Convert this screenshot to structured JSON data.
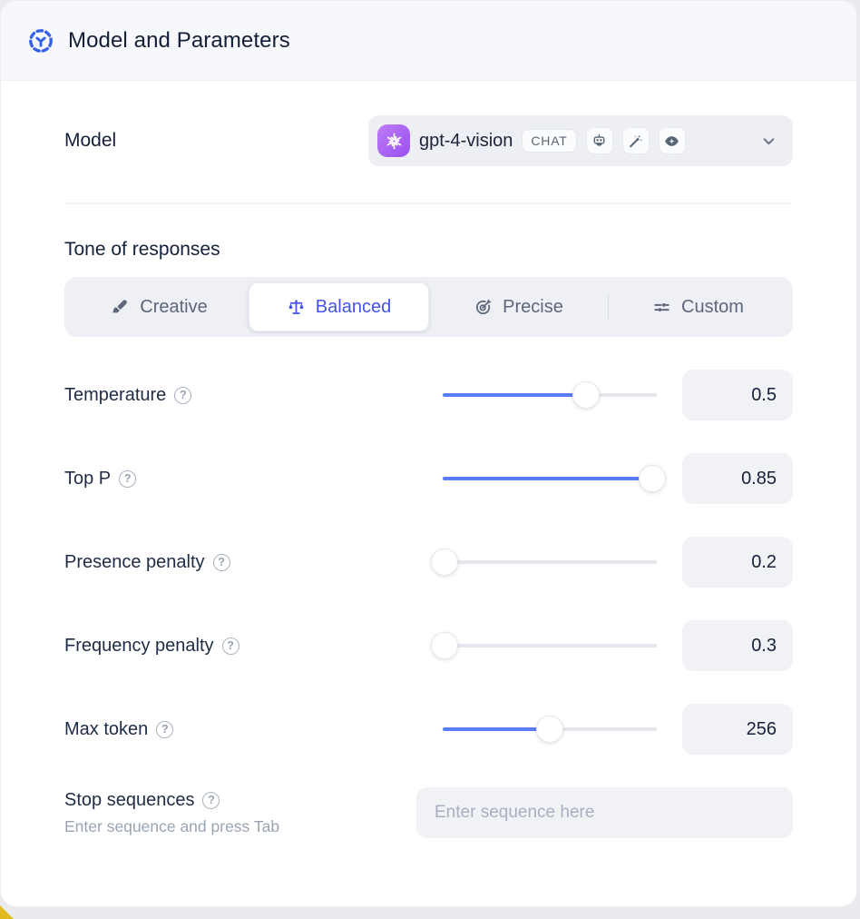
{
  "header": {
    "title": "Model and Parameters"
  },
  "model_row": {
    "label": "Model",
    "selected_model": "gpt-4-vision",
    "mode_badge": "CHAT",
    "capability_icons": [
      "bot-icon",
      "magic-wand-icon",
      "vision-icon"
    ]
  },
  "tone": {
    "heading": "Tone of responses",
    "tabs": [
      {
        "label": "Creative",
        "icon": "paintbrush-icon",
        "selected": false
      },
      {
        "label": "Balanced",
        "icon": "balance-scale-icon",
        "selected": true
      },
      {
        "label": "Precise",
        "icon": "target-icon",
        "selected": false
      },
      {
        "label": "Custom",
        "icon": "sliders-icon",
        "selected": false
      }
    ]
  },
  "parameters": [
    {
      "label": "Temperature",
      "value": "0.5",
      "fill_pct": 67
    },
    {
      "label": "Top P",
      "value": "0.85",
      "fill_pct": 98
    },
    {
      "label": "Presence penalty",
      "value": "0.2",
      "fill_pct": 1
    },
    {
      "label": "Frequency penalty",
      "value": "0.3",
      "fill_pct": 1
    },
    {
      "label": "Max token",
      "value": "256",
      "fill_pct": 50
    }
  ],
  "stop_sequences": {
    "label": "Stop sequences",
    "hint": "Enter sequence and press Tab",
    "placeholder": "Enter sequence here"
  },
  "colors": {
    "accent_indigo": "#4352e8",
    "slider_blue": "#5b7cf8",
    "brand_purple": "#a55ff3",
    "header_icon_blue": "#3560e8",
    "corner_yellow": "#e0bb1e"
  }
}
